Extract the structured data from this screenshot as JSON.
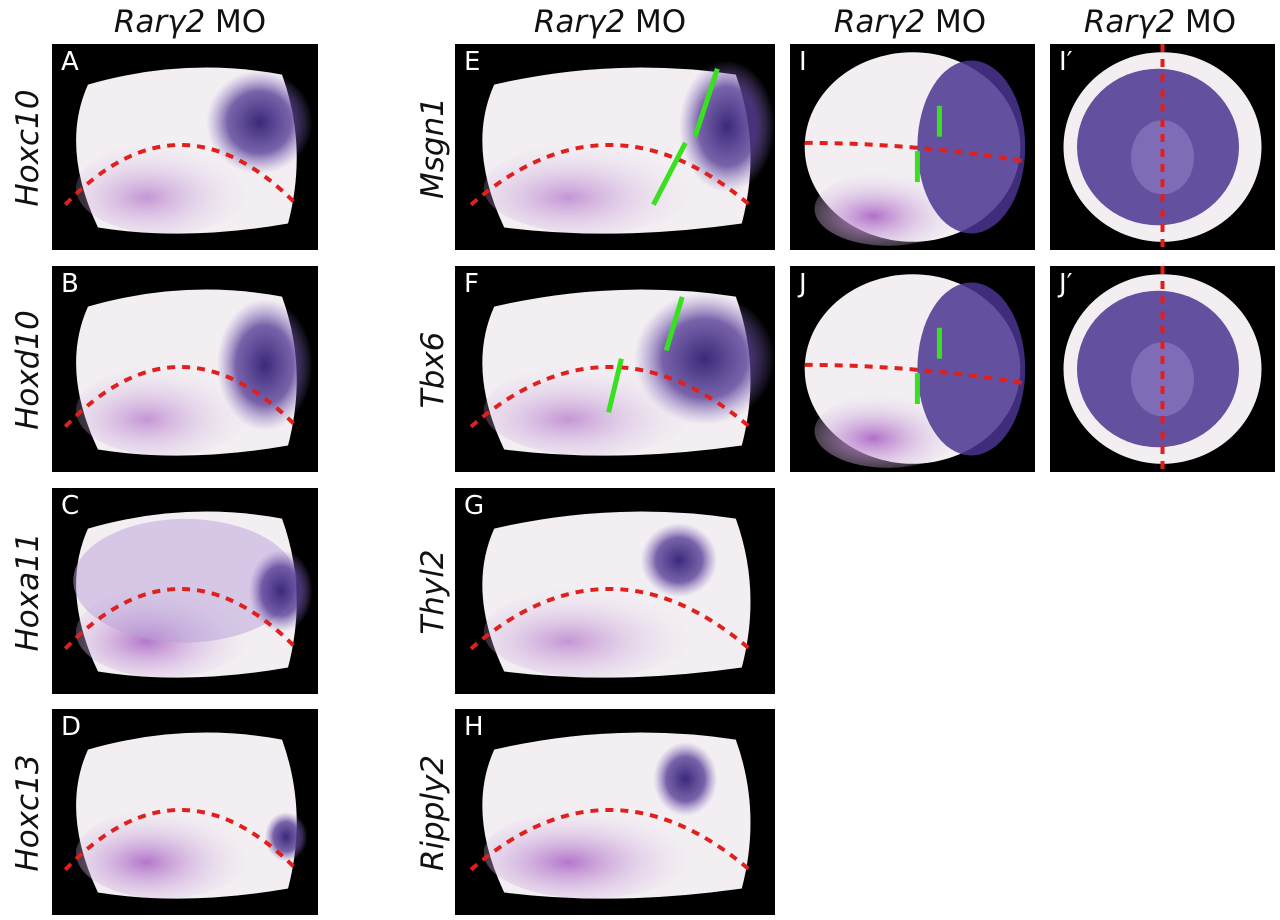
{
  "column_headers": [
    {
      "italic": "Rarγ2",
      "rest": " MO"
    },
    {
      "italic": "Rarγ2",
      "rest": " MO"
    },
    {
      "italic": "Rarγ2",
      "rest": " MO"
    },
    {
      "italic": "Rarγ2",
      "rest": " MO"
    }
  ],
  "panels": [
    {
      "letter": "A",
      "gene": "Hoxc10"
    },
    {
      "letter": "B",
      "gene": "Hoxd10"
    },
    {
      "letter": "C",
      "gene": "Hoxa11"
    },
    {
      "letter": "D",
      "gene": "Hoxc13"
    },
    {
      "letter": "E",
      "gene": "Msgn1"
    },
    {
      "letter": "F",
      "gene": "Tbx6"
    },
    {
      "letter": "G",
      "gene": "Thyl2"
    },
    {
      "letter": "H",
      "gene": "Ripply2"
    },
    {
      "letter": "I"
    },
    {
      "letter": "J"
    },
    {
      "letter": "I′"
    },
    {
      "letter": "J′"
    }
  ],
  "colors": {
    "dashed_line": "#e0201c",
    "marker": "#39e01f",
    "stain": "#3a2a7a",
    "background": "#000000"
  }
}
